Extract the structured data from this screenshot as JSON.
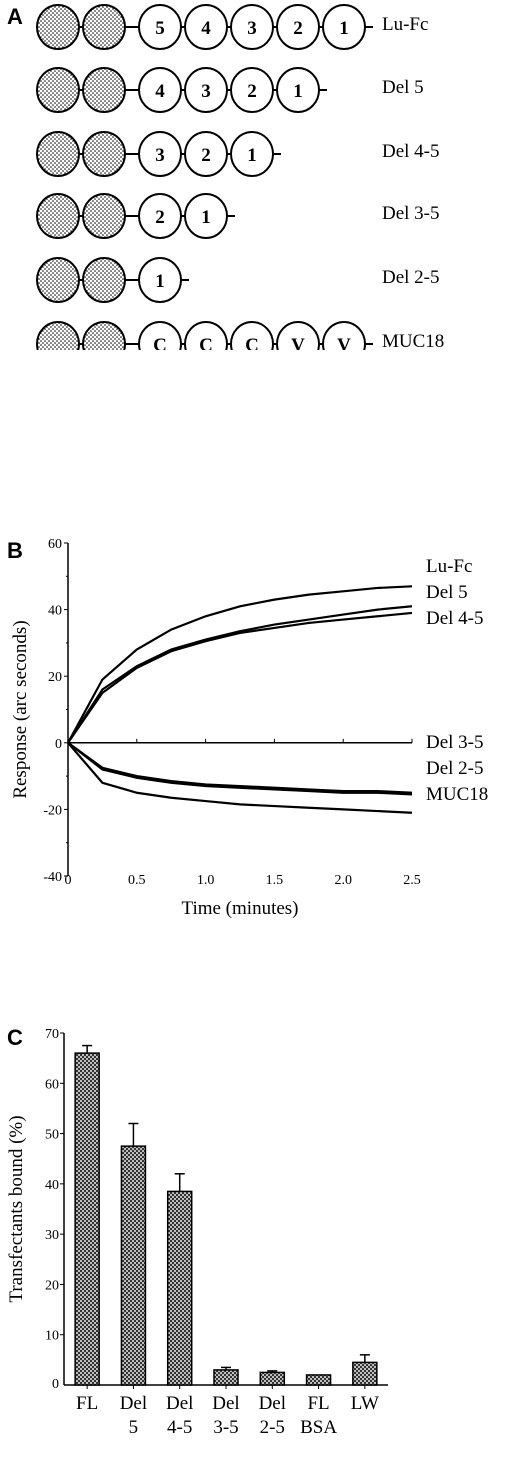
{
  "panels": {
    "a_letter": "A",
    "b_letter": "B",
    "c_letter": "C"
  },
  "panel_a": {
    "constructs": [
      {
        "label": "Lu-Fc",
        "domains": [
          "5",
          "4",
          "3",
          "2",
          "1"
        ]
      },
      {
        "label": "Del 5",
        "domains": [
          "4",
          "3",
          "2",
          "1"
        ]
      },
      {
        "label": "Del 4-5",
        "domains": [
          "3",
          "2",
          "1"
        ]
      },
      {
        "label": "Del 3-5",
        "domains": [
          "2",
          "1"
        ]
      },
      {
        "label": "Del 2-5",
        "domains": [
          "1"
        ]
      },
      {
        "label": "MUC18",
        "domains": [
          "C",
          "C",
          "C",
          "V",
          "V"
        ]
      }
    ]
  },
  "chart_data": [
    {
      "type": "line",
      "xlabel": "Time (minutes)",
      "ylabel": "Response (arc seconds)",
      "xlim": [
        0,
        2.5
      ],
      "ylim": [
        -40,
        60
      ],
      "xticks": [
        "0",
        "0.5",
        "1.0",
        "1.5",
        "2.0",
        "2.5"
      ],
      "yticks": [
        "-40",
        "-20",
        "0",
        "20",
        "40",
        "60"
      ],
      "grid": false,
      "series": [
        {
          "name": "Lu-Fc",
          "x": [
            0,
            0.25,
            0.5,
            0.75,
            1.0,
            1.25,
            1.5,
            1.75,
            2.0,
            2.25,
            2.5
          ],
          "values": [
            0,
            19,
            28,
            34,
            38,
            41,
            43,
            44.5,
            45.5,
            46.5,
            47
          ]
        },
        {
          "name": "Del 5",
          "x": [
            0,
            0.25,
            0.5,
            0.75,
            1.0,
            1.25,
            1.5,
            1.75,
            2.0,
            2.25,
            2.5
          ],
          "values": [
            0,
            16,
            23,
            28,
            31,
            33.5,
            35.5,
            37,
            38.5,
            40,
            41
          ]
        },
        {
          "name": "Del 4-5",
          "x": [
            0,
            0.25,
            0.5,
            0.75,
            1.0,
            1.25,
            1.5,
            1.75,
            2.0,
            2.25,
            2.5
          ],
          "values": [
            0,
            15,
            22.5,
            27.5,
            30.5,
            33,
            34.5,
            36,
            37,
            38,
            39
          ]
        },
        {
          "name": "Del 3-5",
          "x": [
            0,
            0.25,
            0.5,
            0.75,
            1.0,
            1.25,
            1.5,
            1.75,
            2.0,
            2.25,
            2.5
          ],
          "values": [
            0,
            -7.5,
            -10,
            -11.5,
            -12.5,
            -13,
            -13.5,
            -14,
            -14.5,
            -14.5,
            -15
          ]
        },
        {
          "name": "Del 2-5",
          "x": [
            0,
            0.25,
            0.5,
            0.75,
            1.0,
            1.25,
            1.5,
            1.75,
            2.0,
            2.25,
            2.5
          ],
          "values": [
            0,
            -8,
            -10.5,
            -12,
            -13,
            -13.5,
            -14,
            -14.5,
            -15,
            -15,
            -15.5
          ]
        },
        {
          "name": "MUC18",
          "x": [
            0,
            0.25,
            0.5,
            0.75,
            1.0,
            1.25,
            1.5,
            1.75,
            2.0,
            2.25,
            2.5
          ],
          "values": [
            0,
            -12,
            -15,
            -16.5,
            -17.5,
            -18.5,
            -19,
            -19.5,
            -20,
            -20.5,
            -21
          ]
        }
      ]
    },
    {
      "type": "bar",
      "ylabel": "Transfectants bound (%)",
      "ylim": [
        0,
        70
      ],
      "yticks": [
        "10",
        "20",
        "30",
        "40",
        "50",
        "60",
        "70"
      ],
      "categories": [
        [
          "FL",
          ""
        ],
        [
          "Del",
          "5"
        ],
        [
          "Del",
          "4-5"
        ],
        [
          "Del",
          "3-5"
        ],
        [
          "Del",
          "2-5"
        ],
        [
          "FL",
          "BSA"
        ],
        [
          "LW",
          ""
        ]
      ],
      "values": [
        66,
        47.5,
        38.5,
        3,
        2.5,
        2,
        4.5
      ],
      "errors": [
        1.5,
        4.5,
        3.5,
        0.5,
        0.3,
        0,
        1.5
      ]
    }
  ]
}
